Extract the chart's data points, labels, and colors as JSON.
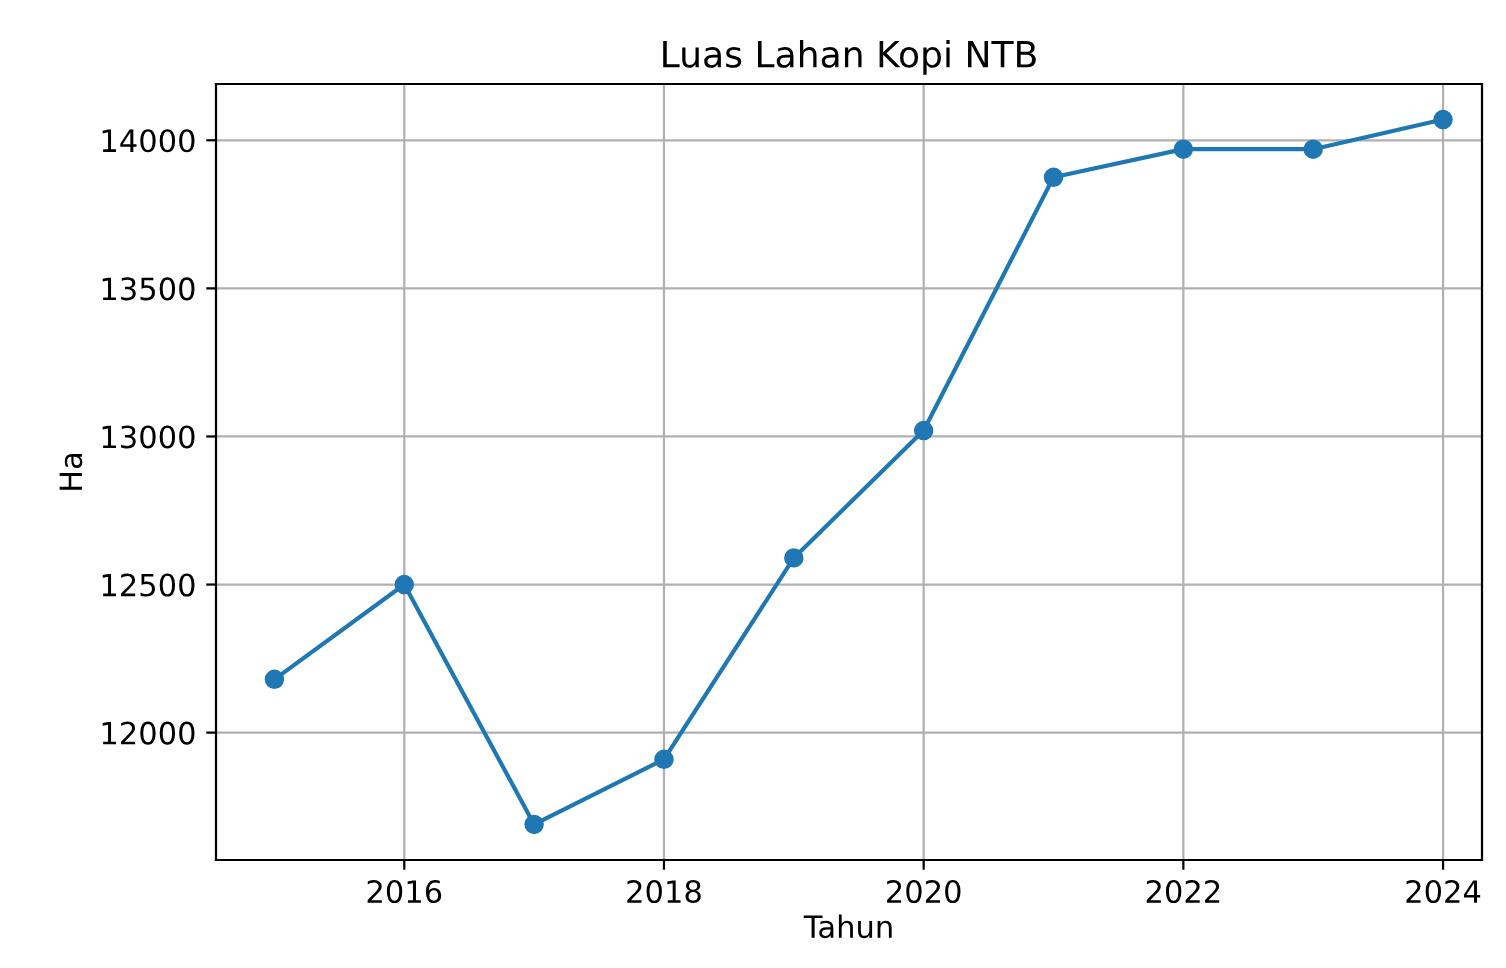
{
  "chart_data": {
    "type": "line",
    "title": "Luas Lahan Kopi NTB",
    "xlabel": "Tahun",
    "ylabel": "Ha",
    "x": [
      2015,
      2016,
      2017,
      2018,
      2019,
      2020,
      2021,
      2022,
      2023,
      2024
    ],
    "series": [
      {
        "color": "#1f77b4",
        "values": [
          12180,
          12500,
          11690,
          11910,
          12590,
          13020,
          13875,
          13970,
          13970,
          14070
        ]
      }
    ],
    "xlim": [
      2014.55,
      2024.3
    ],
    "xticks": [
      2016,
      2018,
      2020,
      2022,
      2024
    ],
    "ylim": [
      11570,
      14190
    ],
    "yticks": [
      12000,
      12500,
      13000,
      13500,
      14000
    ],
    "grid": true,
    "marker": "circle",
    "line_style": "solid"
  }
}
